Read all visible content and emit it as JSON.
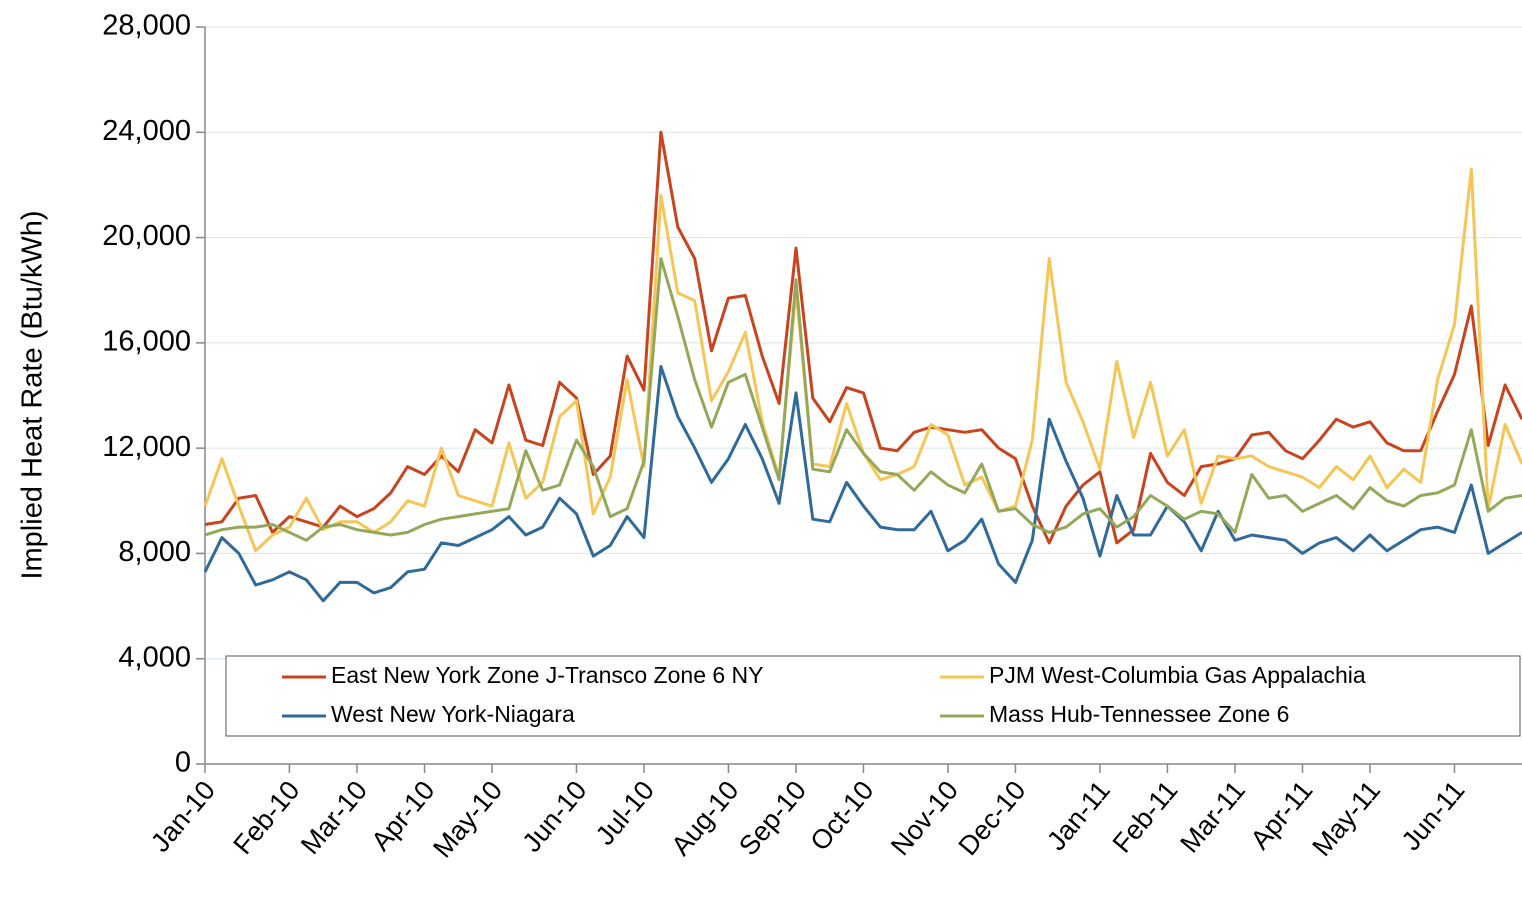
{
  "chart_data": {
    "type": "line",
    "y_label": "Implied Heat Rate (Btu/kWh)",
    "categories": [
      "Jan-10",
      null,
      null,
      null,
      null,
      "Feb-10",
      null,
      null,
      null,
      "Mar-10",
      null,
      null,
      null,
      "Apr-10",
      null,
      null,
      null,
      "May-10",
      null,
      null,
      null,
      null,
      "Jun-10",
      null,
      null,
      null,
      "Jul-10",
      null,
      null,
      null,
      null,
      "Aug-10",
      null,
      null,
      null,
      "Sep-10",
      null,
      null,
      null,
      "Oct-10",
      null,
      null,
      null,
      null,
      "Nov-10",
      null,
      null,
      null,
      "Dec-10",
      null,
      null,
      null,
      null,
      "Jan-11",
      null,
      null,
      null,
      "Feb-11",
      null,
      null,
      null,
      "Mar-11",
      null,
      null,
      null,
      "Apr-11",
      null,
      null,
      null,
      "May-11",
      null,
      null,
      null,
      null,
      "Jun-11",
      null,
      null,
      null,
      null
    ],
    "series": [
      {
        "name": "East New York Zone J-Transco Zone 6 NY",
        "color": "#c8431e",
        "values": [
          9100,
          9200,
          10100,
          10200,
          8800,
          9400,
          9200,
          9000,
          9800,
          9400,
          9700,
          10300,
          11300,
          11000,
          11700,
          11100,
          12700,
          12200,
          14400,
          12300,
          12100,
          14500,
          13900,
          11000,
          11700,
          15500,
          14200,
          24000,
          20400,
          19200,
          15700,
          17700,
          17800,
          15500,
          13700,
          19600,
          13900,
          13000,
          14300,
          14100,
          12000,
          11900,
          12600,
          12800,
          12700,
          12600,
          12700,
          12000,
          11600,
          9800,
          8400,
          9800,
          10600,
          11100,
          8400,
          8900,
          11800,
          10700,
          10200,
          11300,
          11400,
          11600,
          12500,
          12600,
          11900,
          11600,
          12300,
          13100,
          12800,
          13000,
          12200,
          11900,
          11900,
          13400,
          14800,
          17400,
          12100,
          14400,
          13100
        ]
      },
      {
        "name": "PJM West-Columbia Gas Appalachia",
        "color": "#f5c656",
        "values": [
          9800,
          11600,
          9800,
          8100,
          8700,
          9000,
          10100,
          8900,
          9200,
          9200,
          8800,
          9200,
          10000,
          9800,
          12000,
          10200,
          10000,
          9800,
          12200,
          10100,
          10700,
          13200,
          13800,
          9500,
          10900,
          14600,
          11300,
          21600,
          17900,
          17600,
          13800,
          14900,
          16400,
          13000,
          10900,
          18000,
          11400,
          11300,
          13700,
          11800,
          10800,
          11000,
          11300,
          12900,
          12500,
          10600,
          10900,
          9600,
          9800,
          12300,
          19200,
          14500,
          13000,
          11200,
          15300,
          12400,
          14500,
          11700,
          12700,
          9900,
          11700,
          11600,
          11700,
          11300,
          11100,
          10900,
          10500,
          11300,
          10800,
          11700,
          10500,
          11200,
          10700,
          14600,
          16700,
          22600,
          9700,
          12900,
          11400
        ]
      },
      {
        "name": "West New York-Niagara",
        "color": "#2f6a9a",
        "values": [
          7300,
          8600,
          8000,
          6800,
          7000,
          7300,
          7000,
          6200,
          6900,
          6900,
          6500,
          6700,
          7300,
          7400,
          8400,
          8300,
          8600,
          8900,
          9400,
          8700,
          9000,
          10100,
          9500,
          7900,
          8300,
          9400,
          8600,
          15100,
          13200,
          12000,
          10700,
          11600,
          12900,
          11600,
          9900,
          14100,
          9300,
          9200,
          10700,
          9800,
          9000,
          8900,
          8900,
          9600,
          8100,
          8500,
          9300,
          7600,
          6900,
          8500,
          13100,
          11500,
          10100,
          7900,
          10200,
          8700,
          8700,
          9800,
          9200,
          8100,
          9600,
          8500,
          8700,
          8600,
          8500,
          8000,
          8400,
          8600,
          8100,
          8700,
          8100,
          8500,
          8900,
          9000,
          8800,
          10600,
          8000,
          8400,
          8800
        ]
      },
      {
        "name": "Mass Hub-Tennessee Zone 6",
        "color": "#94a85a",
        "values": [
          8700,
          8900,
          9000,
          9000,
          9100,
          8800,
          8500,
          9000,
          9100,
          8900,
          8800,
          8700,
          8800,
          9100,
          9300,
          9400,
          9500,
          9600,
          9700,
          11900,
          10400,
          10600,
          12300,
          11300,
          9400,
          9700,
          11500,
          19200,
          17000,
          14600,
          12800,
          14500,
          14800,
          12800,
          10800,
          18400,
          11200,
          11100,
          12700,
          11800,
          11100,
          11000,
          10400,
          11100,
          10600,
          10300,
          11400,
          9600,
          9700,
          9100,
          8800,
          9000,
          9500,
          9700,
          9000,
          9400,
          10200,
          9800,
          9300,
          9600,
          9500,
          8800,
          11000,
          10100,
          10200,
          9600,
          9900,
          10200,
          9700,
          10500,
          10000,
          9800,
          10200,
          10300,
          10600,
          12700,
          9600,
          10100,
          10200
        ]
      }
    ],
    "ylim": [
      0,
      28000
    ],
    "yticks": [
      0,
      {
        "value": 4000,
        "label": "4,000"
      },
      {
        "value": 8000,
        "label": "8,000"
      },
      {
        "value": 12000,
        "label": "12,000"
      },
      {
        "value": 16000,
        "label": "16,000"
      },
      {
        "value": 20000,
        "label": "20,000"
      },
      {
        "value": 24000,
        "label": "24,000"
      },
      {
        "value": 28000,
        "label": "28,000"
      }
    ],
    "grid": true
  }
}
